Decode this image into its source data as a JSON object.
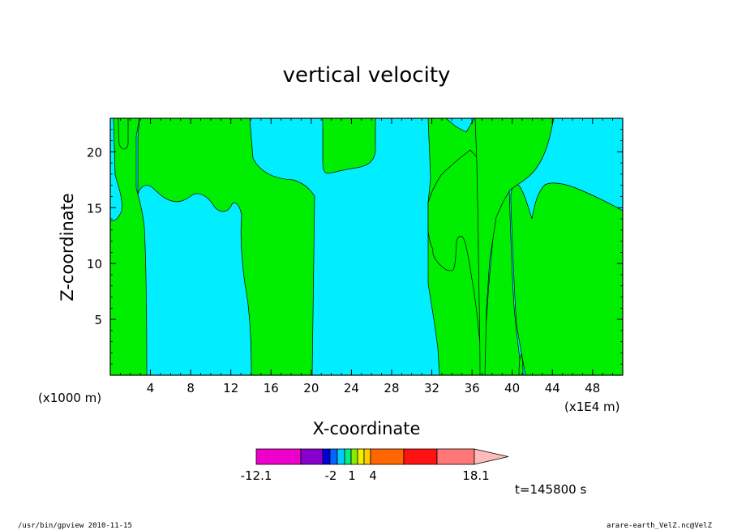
{
  "chart_data": {
    "type": "contour",
    "title": "vertical velocity",
    "xlabel": "X-coordinate",
    "ylabel": "Z-coordinate",
    "x_unit_left": "(x1000 m)",
    "x_unit_right": "(x1E4 m)",
    "xlim": [
      0,
      51
    ],
    "ylim": [
      0,
      23
    ],
    "x_ticks": [
      4,
      8,
      12,
      16,
      20,
      24,
      28,
      32,
      36,
      40,
      44,
      48
    ],
    "y_ticks": [
      5,
      10,
      15,
      20
    ],
    "regions": [
      {
        "name": "positive (green)",
        "color": "#00ee00"
      },
      {
        "name": "negative (cyan)",
        "color": "#00eeff"
      }
    ],
    "colorbar": {
      "min_label": "-12.1",
      "max_label": "18.1",
      "tick_labels": [
        "-12.1",
        "-2",
        "1",
        "4",
        "18.1"
      ],
      "colors": [
        "#ee00cc",
        "#8800cc",
        "#0000dd",
        "#0066ff",
        "#00ccff",
        "#00ee88",
        "#88ee00",
        "#eeee00",
        "#ffcc00",
        "#ff6600",
        "#ff1111",
        "#ff7777",
        "#ffbbbb"
      ]
    },
    "time_label": "t=145800 s"
  },
  "footer": {
    "left": "/usr/bin/gpview   2010-11-15",
    "right": "arare-earth_VelZ.nc@VelZ"
  }
}
